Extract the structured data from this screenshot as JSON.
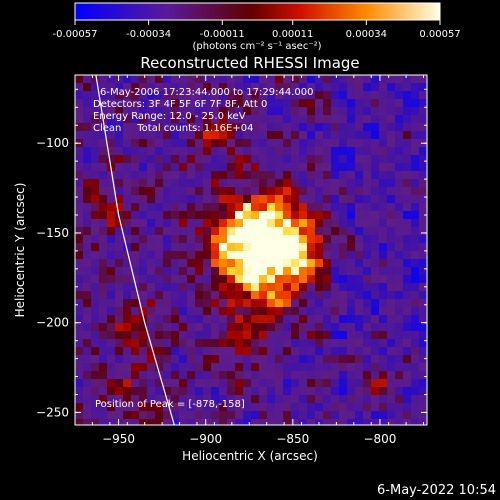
{
  "chart_data": {
    "type": "heatmap",
    "title": "Reconstructed RHESSI Image",
    "xlabel": "Heliocentric X (arcsec)",
    "ylabel": "Heliocentric Y (arcsec)",
    "xlim": [
      -975,
      -773
    ],
    "ylim": [
      -257,
      -62
    ],
    "x_ticks": [
      -950,
      -900,
      -850,
      -800
    ],
    "y_ticks": [
      -100,
      -150,
      -200,
      -250
    ],
    "x_tick_labels": [
      "−950",
      "−900",
      "−850",
      "−800"
    ],
    "y_tick_labels": [
      "−100",
      "−150",
      "−200",
      "−250"
    ],
    "colorbar": {
      "ticks": [
        -0.00057,
        -0.00034,
        -0.00011,
        0.00011,
        0.00034,
        0.00057
      ],
      "tick_labels": [
        "-0.00057",
        "-0.00034",
        "-0.00011",
        "0.00011",
        "0.00034",
        "0.00057"
      ],
      "range": [
        -0.00057,
        0.00057
      ],
      "unit_label": "(photons cm⁻² s⁻¹ asec⁻²)",
      "colors": [
        "#0000ff",
        "#5a1a9a",
        "#8a0000",
        "#ff3000",
        "#ffa000",
        "#ffffe0"
      ]
    },
    "annotations": [
      "6-May-2006 17:23:44.000 to 17:29:44.000",
      "Detectors: 3F 4F 5F 6F 7F 8F, Att 0",
      "Energy Range: 12.0 - 25.0 keV",
      "Clean     Total counts: 1.16E+04"
    ],
    "peak_label": "Position of Peak = [-878,-158]",
    "peak": [
      -878,
      -158
    ],
    "limb_curve": [
      [
        -963,
        -62
      ],
      [
        -950,
        -140
      ],
      [
        -935,
        -200
      ],
      [
        -918,
        -257
      ]
    ]
  },
  "footer": {
    "timestamp": "6-May-2022 10:54"
  }
}
